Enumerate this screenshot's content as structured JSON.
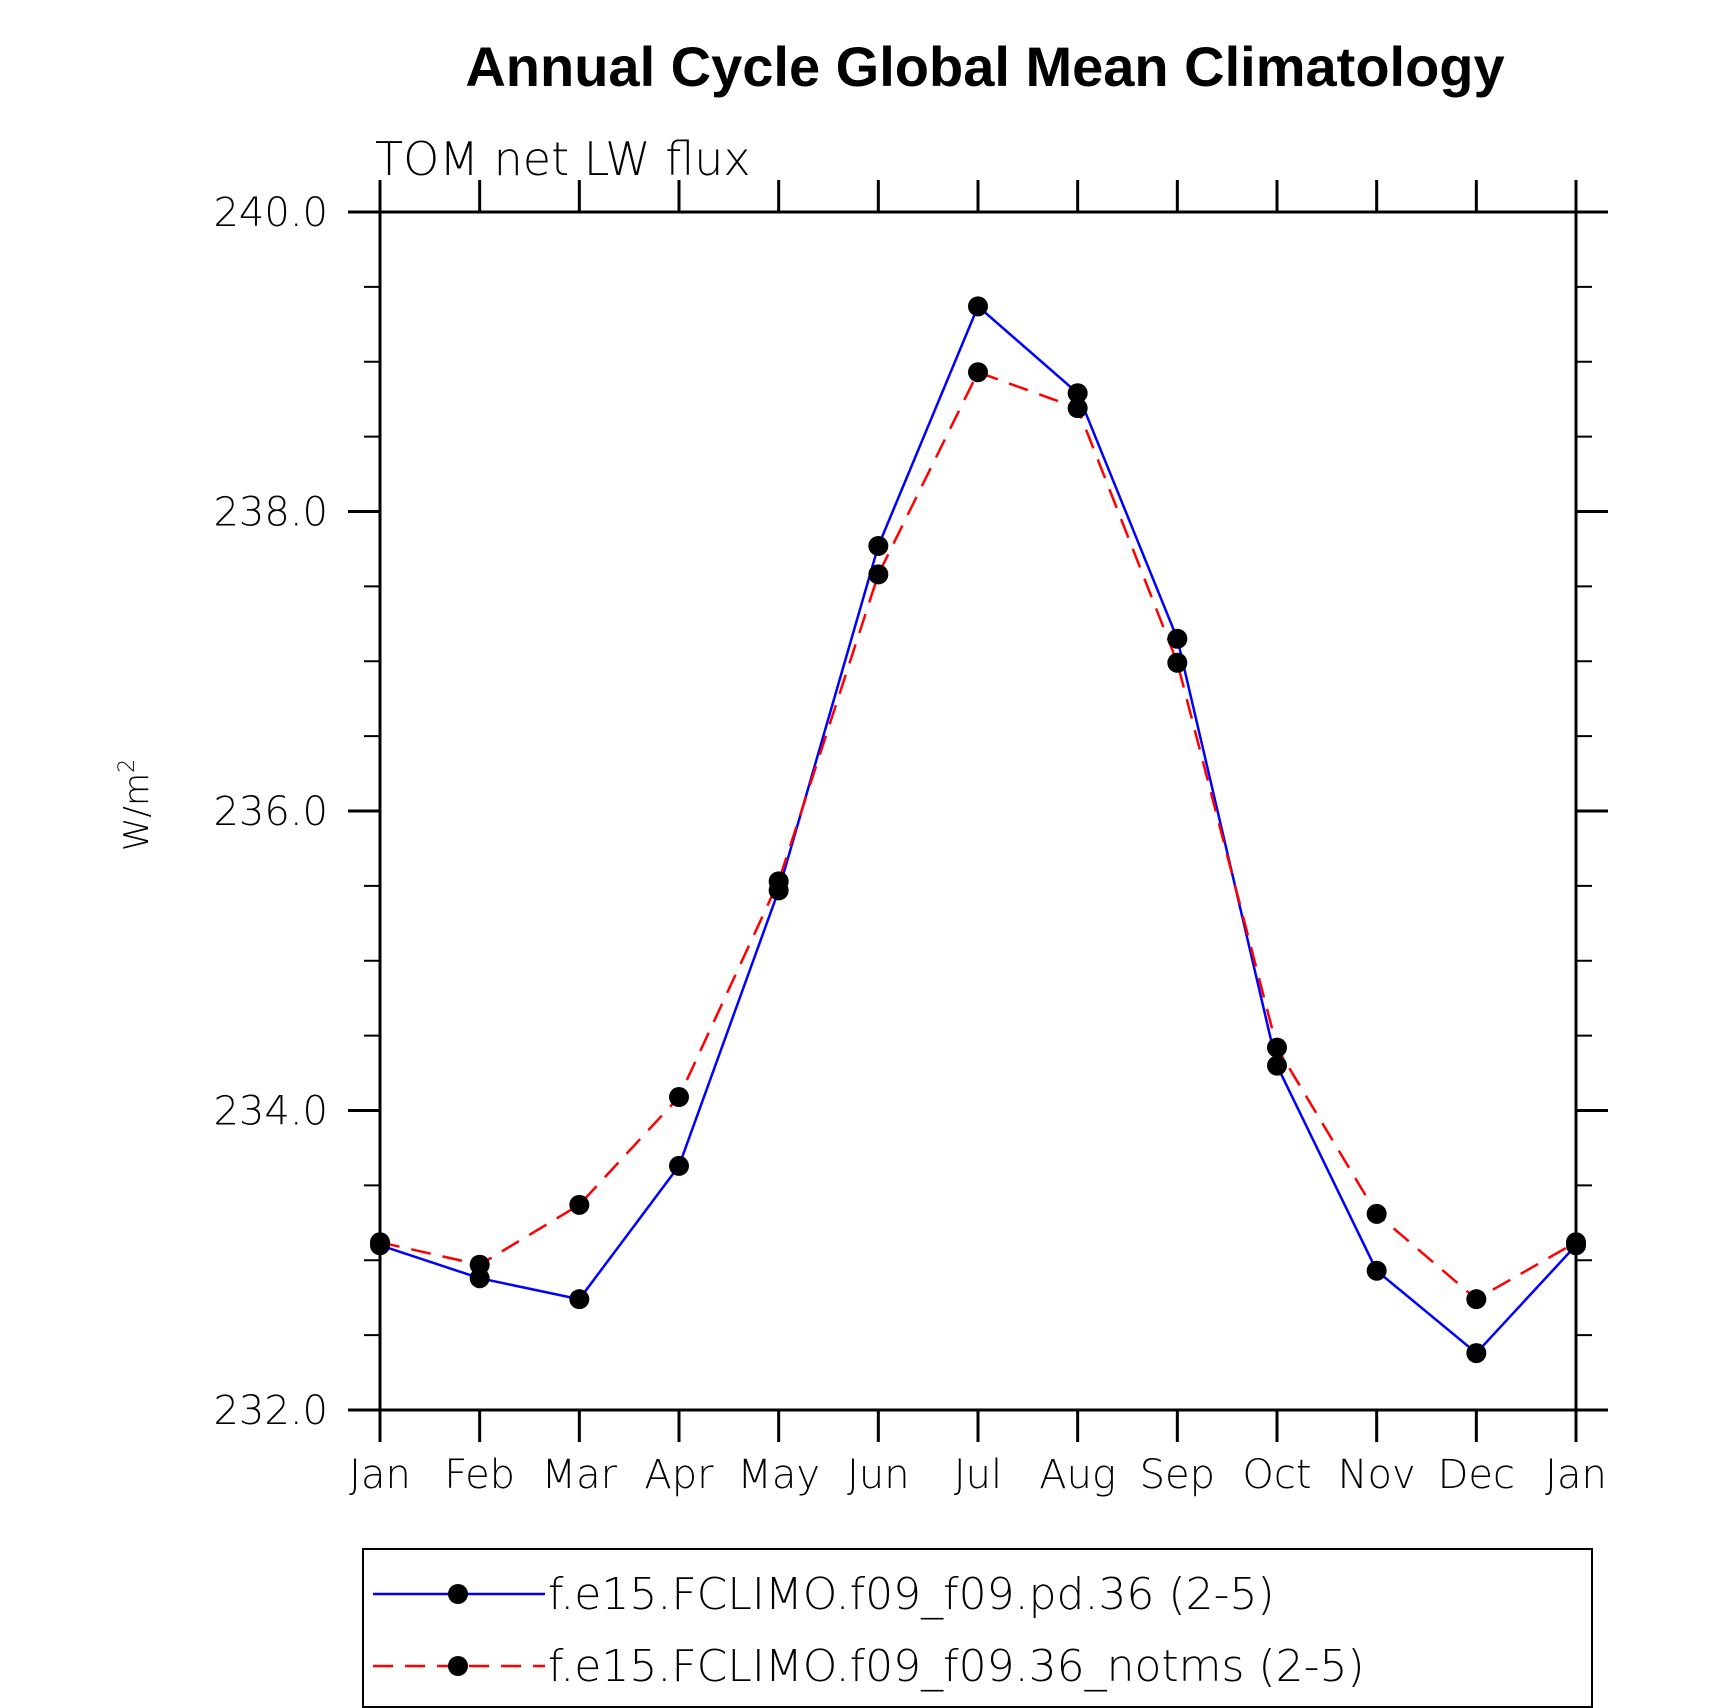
{
  "chart_data": {
    "type": "line",
    "title": "Annual Cycle Global Mean Climatology",
    "subtitle": "TOM net LW flux",
    "ylabel": "W/m",
    "ylabel_superscript": "2",
    "xlabel": "",
    "categories": [
      "Jan",
      "Feb",
      "Mar",
      "Apr",
      "May",
      "Jun",
      "Jul",
      "Aug",
      "Sep",
      "Oct",
      "Nov",
      "Dec",
      "Jan"
    ],
    "ylim": [
      232.0,
      240.0
    ],
    "yticks": [
      232.0,
      234.0,
      236.0,
      238.0,
      240.0
    ],
    "ytick_labels": [
      "232.0",
      "234.0",
      "236.0",
      "238.0",
      "240.0"
    ],
    "y_minor_step": 0.5,
    "grid": false,
    "legend_position": "bottom",
    "series": [
      {
        "name": "f.e15.FCLIMO.f09_f09.pd.36 (2-5)",
        "color": "#0000ff",
        "style": "solid",
        "marker": "filled-circle",
        "values": [
          233.1,
          232.88,
          232.74,
          233.63,
          235.47,
          237.77,
          239.37,
          238.79,
          237.15,
          234.3,
          232.93,
          232.38,
          233.1
        ]
      },
      {
        "name": "f.e15.FCLIMO.f09_f09.36_notms (2-5)",
        "color": "#ff0000",
        "style": "dashed",
        "marker": "filled-circle",
        "values": [
          233.12,
          232.97,
          233.37,
          234.09,
          235.53,
          237.58,
          238.93,
          238.69,
          236.99,
          234.42,
          233.31,
          232.74,
          233.12
        ]
      }
    ]
  }
}
